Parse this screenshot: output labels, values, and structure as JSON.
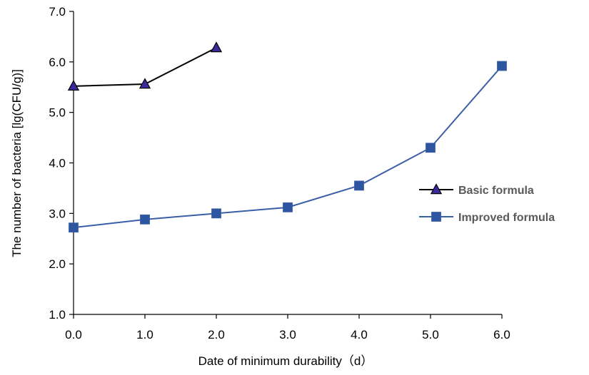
{
  "chart_data": {
    "type": "line",
    "xlabel": "Date of minimum durability（d）",
    "ylabel": "The number of bacteria [lg(CFU/g)]",
    "xlim": [
      0,
      6
    ],
    "ylim": [
      1,
      7
    ],
    "x_ticks": [
      "0.0",
      "1.0",
      "2.0",
      "3.0",
      "4.0",
      "5.0",
      "6.0"
    ],
    "y_ticks": [
      "1.0",
      "2.0",
      "3.0",
      "4.0",
      "5.0",
      "6.0",
      "7.0"
    ],
    "grid": false,
    "legend_position": "right",
    "series": [
      {
        "name": "Basic formula",
        "marker": "triangle",
        "line_color": "#000000",
        "marker_fill": "#3b2a9e",
        "x": [
          0,
          1,
          2
        ],
        "y": [
          5.52,
          5.56,
          6.28
        ]
      },
      {
        "name": "Improved formula",
        "marker": "square",
        "line_color": "#3b5ea8",
        "marker_fill": "#2e56a0",
        "x": [
          0,
          1,
          2,
          3,
          4,
          5,
          6
        ],
        "y": [
          2.72,
          2.88,
          3.0,
          3.12,
          3.55,
          4.3,
          5.92
        ]
      }
    ]
  }
}
